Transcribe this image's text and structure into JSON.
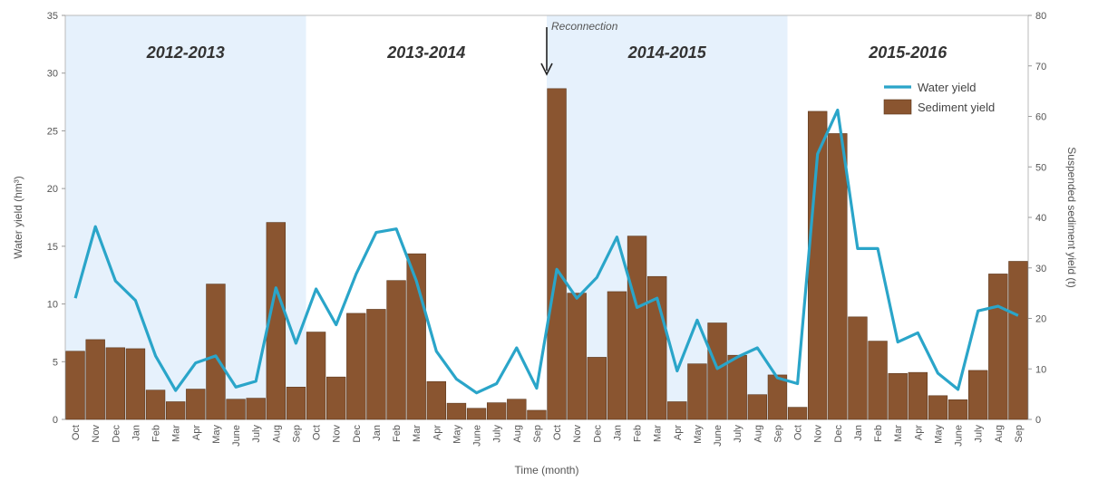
{
  "chart_data": {
    "type": "bar",
    "title": "",
    "xlabel": "Time (month)",
    "ylabel": "Water yield (hm³)",
    "y2label": "Suspended sediment yield (t)",
    "ylim": [
      0,
      35
    ],
    "y2lim": [
      0,
      80
    ],
    "yticks": [
      0,
      5,
      10,
      15,
      20,
      25,
      30,
      35
    ],
    "y2ticks": [
      0,
      10,
      20,
      30,
      40,
      50,
      60,
      70,
      80
    ],
    "categories": [
      "Oct",
      "Nov",
      "Dec",
      "Jan",
      "Feb",
      "Mar",
      "Apr",
      "May",
      "June",
      "July",
      "Aug",
      "Sep",
      "Oct",
      "Nov",
      "Dec",
      "Jan",
      "Feb",
      "Mar",
      "Apr",
      "May",
      "June",
      "July",
      "Aug",
      "Sep",
      "Oct",
      "Nov",
      "Dec",
      "Jan",
      "Feb",
      "Mar",
      "Apr",
      "May",
      "June",
      "July",
      "Aug",
      "Sep",
      "Oct",
      "Nov",
      "Dec",
      "Jan",
      "Feb",
      "Mar",
      "Apr",
      "May",
      "June",
      "July",
      "Aug",
      "Sep"
    ],
    "periods": [
      {
        "label": "2012-2013",
        "start": 0,
        "end": 12,
        "shaded": true
      },
      {
        "label": "2013-2014",
        "start": 12,
        "end": 24,
        "shaded": false
      },
      {
        "label": "2014-2015",
        "start": 24,
        "end": 36,
        "shaded": true
      },
      {
        "label": "2015-2016",
        "start": 36,
        "end": 48,
        "shaded": false
      }
    ],
    "annotation": {
      "text": "Reconnection",
      "index": 23.5
    },
    "legend_position": "top-right",
    "series": [
      {
        "name": "Water yield",
        "type": "line",
        "axis": "left",
        "color": "#2aa5c9",
        "values": [
          10.5,
          16.7,
          12,
          10.3,
          5.5,
          2.5,
          4.9,
          5.5,
          2.8,
          3.3,
          11.4,
          6.6,
          11.3,
          8.2,
          12.6,
          16.2,
          16.5,
          12,
          5.9,
          3.5,
          2.3,
          3.1,
          6.2,
          2.7,
          13,
          10.5,
          12.3,
          15.8,
          9.7,
          10.5,
          4.2,
          8.6,
          4.4,
          5.4,
          6.2,
          3.6,
          3.1,
          23,
          26.8,
          14.8,
          14.8,
          6.7,
          7.5,
          4.0,
          2.6,
          9.4,
          9.8,
          9
        ]
      },
      {
        "name": "Sediment yield",
        "type": "bar",
        "axis": "right",
        "color": "#8a5530",
        "values": [
          13.5,
          15.8,
          14.2,
          14,
          5.8,
          3.5,
          6,
          26.8,
          4,
          4.2,
          39,
          6.4,
          17.3,
          8.4,
          21,
          21.8,
          27.5,
          32.8,
          7.5,
          3.2,
          2.2,
          3.3,
          4,
          1.8,
          65.5,
          25,
          12.3,
          25.3,
          36.3,
          28.3,
          3.5,
          11,
          19.1,
          12.7,
          4.9,
          8.8,
          2.4,
          61,
          56.6,
          20.3,
          15.5,
          9.1,
          9.3,
          4.7,
          3.9,
          9.7,
          28.8,
          31.3
        ]
      }
    ]
  }
}
